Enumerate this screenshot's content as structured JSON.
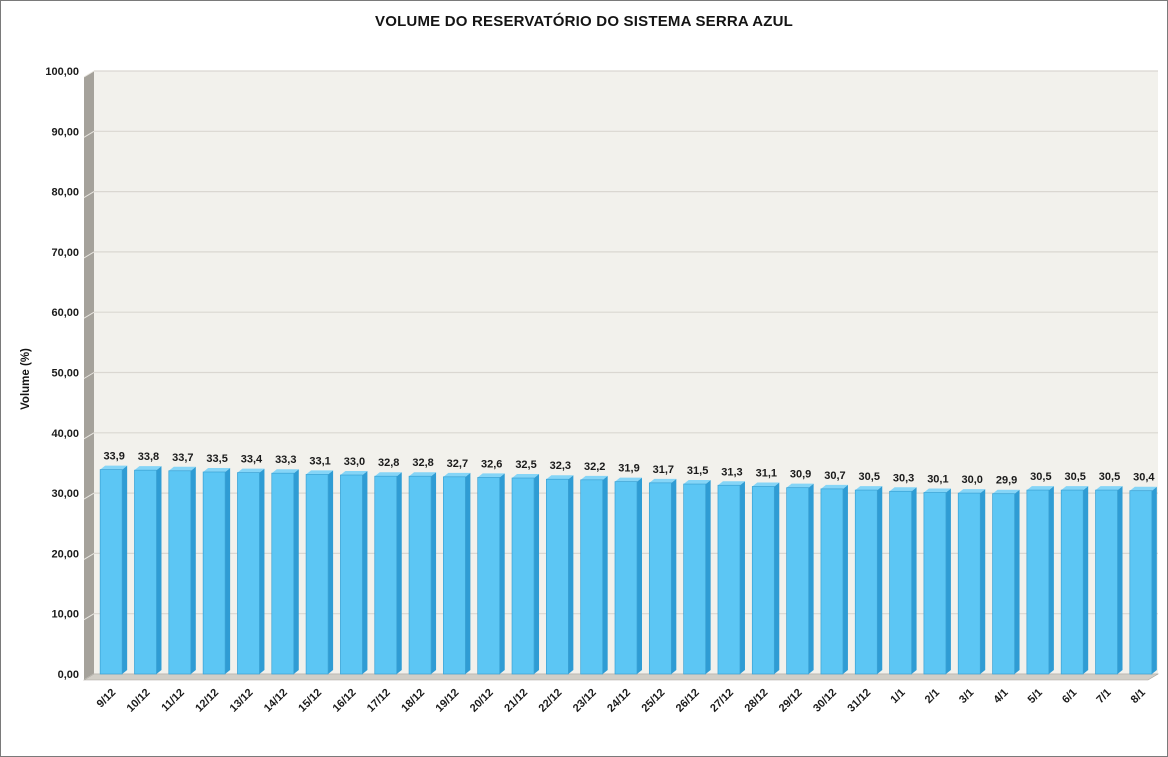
{
  "chart_data": {
    "type": "bar",
    "style": "3d-column",
    "title": "VOLUME DO RESERVATÓRIO DO SISTEMA SERRA AZUL",
    "xlabel": "",
    "ylabel": "Volume (%)",
    "ylim": [
      0,
      100
    ],
    "ytick_step": 10,
    "ytick_labels": [
      "0,00",
      "10,00",
      "20,00",
      "30,00",
      "40,00",
      "50,00",
      "60,00",
      "70,00",
      "80,00",
      "90,00",
      "100,00"
    ],
    "grid": true,
    "legend": "none",
    "categories": [
      "9/12",
      "10/12",
      "11/12",
      "12/12",
      "13/12",
      "14/12",
      "15/12",
      "16/12",
      "17/12",
      "18/12",
      "19/12",
      "20/12",
      "21/12",
      "22/12",
      "23/12",
      "24/12",
      "25/12",
      "26/12",
      "27/12",
      "28/12",
      "29/12",
      "30/12",
      "31/12",
      "1/1",
      "2/1",
      "3/1",
      "4/1",
      "5/1",
      "6/1",
      "7/1",
      "8/1"
    ],
    "values": [
      33.9,
      33.8,
      33.7,
      33.5,
      33.4,
      33.3,
      33.1,
      33.0,
      32.8,
      32.8,
      32.7,
      32.6,
      32.5,
      32.3,
      32.2,
      31.9,
      31.7,
      31.5,
      31.3,
      31.1,
      30.9,
      30.7,
      30.5,
      30.3,
      30.1,
      30.0,
      29.9,
      30.5,
      30.5,
      30.5,
      30.4
    ],
    "value_labels": [
      "33,9",
      "33,8",
      "33,7",
      "33,5",
      "33,4",
      "33,3",
      "33,1",
      "33,0",
      "32,8",
      "32,8",
      "32,7",
      "32,6",
      "32,5",
      "32,3",
      "32,2",
      "31,9",
      "31,7",
      "31,5",
      "31,3",
      "31,1",
      "30,9",
      "30,7",
      "30,5",
      "30,3",
      "30,1",
      "30,0",
      "29,9",
      "30,5",
      "30,5",
      "30,5",
      "30,4"
    ],
    "colors": {
      "bar_face": "#5CC6F4",
      "bar_side": "#2F9CD4",
      "bar_top": "#85D5F7",
      "bar_stroke": "#3BA2D4",
      "plot_bg": "#F2F1EC",
      "gridline": "#DAD7D1",
      "wall_side": "#A5A29B",
      "wall_diag": "#E9E7E1",
      "floor": "#D1CEC7",
      "floor_edge": "#A9A69F",
      "text": "#1A1A1A"
    }
  }
}
